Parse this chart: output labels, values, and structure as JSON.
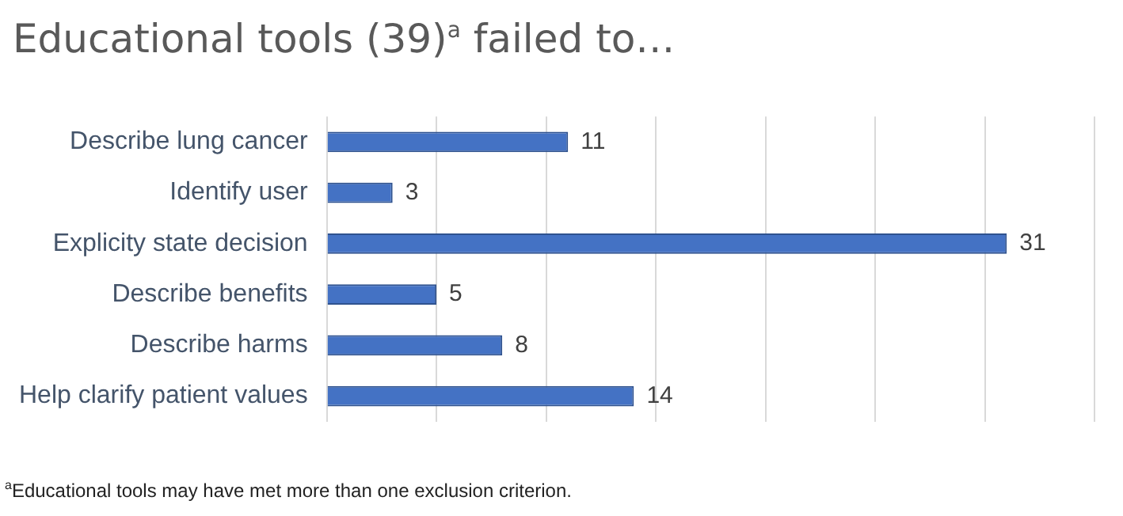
{
  "chart_data": {
    "type": "bar",
    "orientation": "horizontal",
    "title": "Educational tools (39)$^{a}$ failed to…",
    "categories": [
      "Describe lung cancer",
      "Identify user",
      "Explicity state decision",
      "Describe benefits",
      "Describe harms",
      "Help clarify patient values"
    ],
    "values": [
      11,
      3,
      31,
      5,
      8,
      14
    ],
    "color": "#4472c4",
    "xlim": [
      0,
      35
    ],
    "xticks": [
      {
        "value": 0,
        "label": null
      },
      {
        "value": 5,
        "label": null
      },
      {
        "value": 10,
        "label": null
      },
      {
        "value": 15,
        "label": null
      },
      {
        "value": 20,
        "label": null
      },
      {
        "value": 25,
        "label": null
      },
      {
        "value": 30,
        "label": null
      },
      {
        "value": 35,
        "label": null
      }
    ],
    "grid": "x",
    "data_labels": true,
    "legend": false,
    "annotations": [
      "$^{a}$Educational tools may have met more than one exclusion criterion."
    ]
  }
}
